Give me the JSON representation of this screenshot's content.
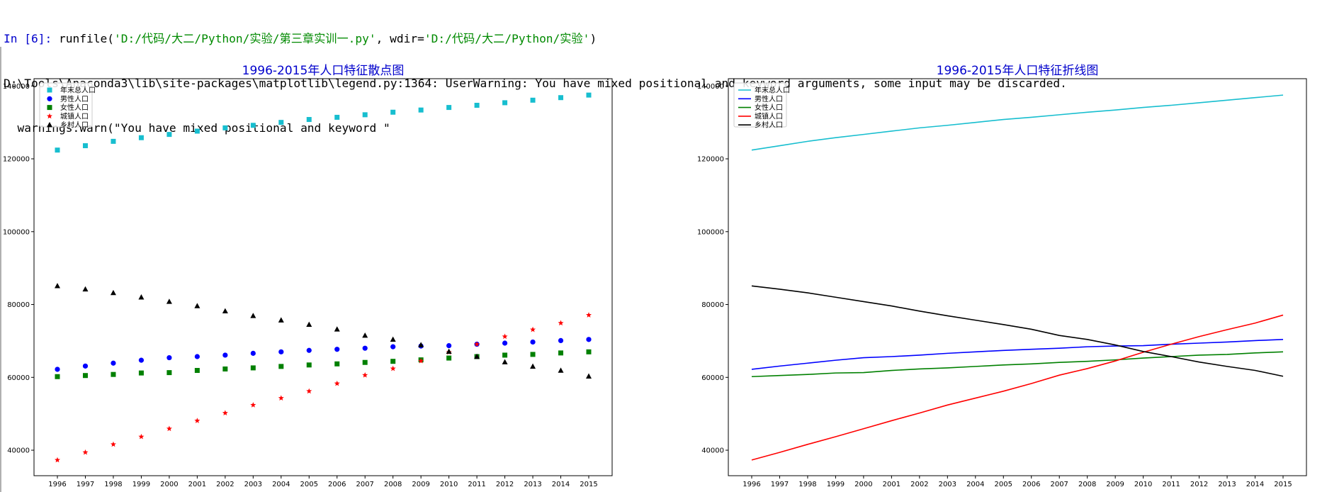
{
  "console": {
    "prompt": "In [6]:",
    "cmd_prefix": " runfile(",
    "arg1": "'D:/代码/大二/Python/实验/第三章实训一.py'",
    "cmd_mid": ", wdir=",
    "arg2": "'D:/代码/大二/Python/实验'",
    "cmd_suffix": ")",
    "warning_line": "D:\\Tools\\Anaconda3\\lib\\site-packages\\matplotlib\\legend.py:1364: UserWarning: You have mixed positional and keyword arguments, some input may be discarded.",
    "warn_call_line": "  warnings.warn(\"You have mixed positional and keyword \""
  },
  "colors": {
    "total": "#17BECF",
    "male": "#0000FF",
    "female": "#008000",
    "urban": "#FF0000",
    "rural": "#000000",
    "title": "#0000CC"
  },
  "chart_data": [
    {
      "type": "scatter",
      "title": "1996-2015年人口特征散点图",
      "x": [
        1996,
        1997,
        1998,
        1999,
        2000,
        2001,
        2002,
        2003,
        2004,
        2005,
        2006,
        2007,
        2008,
        2009,
        2010,
        2011,
        2012,
        2013,
        2014,
        2015
      ],
      "xticks": [
        "1996",
        "1997",
        "1998",
        "1999",
        "2000",
        "2001",
        "2002",
        "2003",
        "2004",
        "2005",
        "2006",
        "2007",
        "2008",
        "2009",
        "2010",
        "2011",
        "2012",
        "2013",
        "2014",
        "2015"
      ],
      "yticks": [
        "40000",
        "60000",
        "80000",
        "100000",
        "120000",
        "140000"
      ],
      "ylim": [
        33000,
        142000
      ],
      "legend_position": "upper left",
      "series": [
        {
          "name": "年末总人口",
          "marker": "square",
          "values": [
            122400,
            123600,
            124800,
            125800,
            126700,
            127600,
            128500,
            129200,
            130000,
            130800,
            131400,
            132100,
            132800,
            133400,
            134100,
            134700,
            135400,
            136100,
            136800,
            137500
          ]
        },
        {
          "name": "男性人口",
          "marker": "circle",
          "values": [
            62200,
            63100,
            63900,
            64700,
            65400,
            65700,
            66100,
            66600,
            67000,
            67400,
            67700,
            68000,
            68400,
            68600,
            68700,
            69100,
            69400,
            69700,
            70100,
            70400
          ]
        },
        {
          "name": "女性人口",
          "marker": "square",
          "values": [
            60200,
            60500,
            60800,
            61200,
            61300,
            61900,
            62300,
            62600,
            63000,
            63400,
            63700,
            64100,
            64400,
            64800,
            65300,
            65700,
            66100,
            66300,
            66700,
            67000
          ]
        },
        {
          "name": "城镇人口",
          "marker": "star",
          "values": [
            37300,
            39400,
            41600,
            43700,
            45900,
            48100,
            50200,
            52400,
            54300,
            56200,
            58300,
            60600,
            62400,
            64500,
            66900,
            69100,
            71200,
            73100,
            74900,
            77100
          ]
        },
        {
          "name": "乡村人口",
          "marker": "triangle",
          "values": [
            85100,
            84200,
            83200,
            82000,
            80800,
            79600,
            78200,
            76900,
            75700,
            74500,
            73200,
            71500,
            70400,
            68900,
            67100,
            65700,
            64200,
            63000,
            61900,
            60300
          ]
        }
      ]
    },
    {
      "type": "line",
      "title": "1996-2015年人口特征折线图",
      "x": [
        1996,
        1997,
        1998,
        1999,
        2000,
        2001,
        2002,
        2003,
        2004,
        2005,
        2006,
        2007,
        2008,
        2009,
        2010,
        2011,
        2012,
        2013,
        2014,
        2015
      ],
      "xticks": [
        "1996",
        "1997",
        "1998",
        "1999",
        "2000",
        "2001",
        "2002",
        "2003",
        "2004",
        "2005",
        "2006",
        "2007",
        "2008",
        "2009",
        "2010",
        "2011",
        "2012",
        "2013",
        "2014",
        "2015"
      ],
      "yticks": [
        "40000",
        "60000",
        "80000",
        "100000",
        "120000",
        "140000"
      ],
      "ylim": [
        33000,
        142000
      ],
      "legend_position": "upper left",
      "series": [
        {
          "name": "年末总人口",
          "values": [
            122400,
            123600,
            124800,
            125800,
            126700,
            127600,
            128500,
            129200,
            130000,
            130800,
            131400,
            132100,
            132800,
            133400,
            134100,
            134700,
            135400,
            136100,
            136800,
            137500
          ]
        },
        {
          "name": "男性人口",
          "values": [
            62200,
            63100,
            63900,
            64700,
            65400,
            65700,
            66100,
            66600,
            67000,
            67400,
            67700,
            68000,
            68400,
            68600,
            68700,
            69100,
            69400,
            69700,
            70100,
            70400
          ]
        },
        {
          "name": "女性人口",
          "values": [
            60200,
            60500,
            60800,
            61200,
            61300,
            61900,
            62300,
            62600,
            63000,
            63400,
            63700,
            64100,
            64400,
            64800,
            65300,
            65700,
            66100,
            66300,
            66700,
            67000
          ]
        },
        {
          "name": "城镇人口",
          "values": [
            37300,
            39400,
            41600,
            43700,
            45900,
            48100,
            50200,
            52400,
            54300,
            56200,
            58300,
            60600,
            62400,
            64500,
            66900,
            69100,
            71200,
            73100,
            74900,
            77100
          ]
        },
        {
          "name": "乡村人口",
          "values": [
            85100,
            84200,
            83200,
            82000,
            80800,
            79600,
            78200,
            76900,
            75700,
            74500,
            73200,
            71500,
            70400,
            68900,
            67100,
            65700,
            64200,
            63000,
            61900,
            60300
          ]
        }
      ]
    }
  ]
}
